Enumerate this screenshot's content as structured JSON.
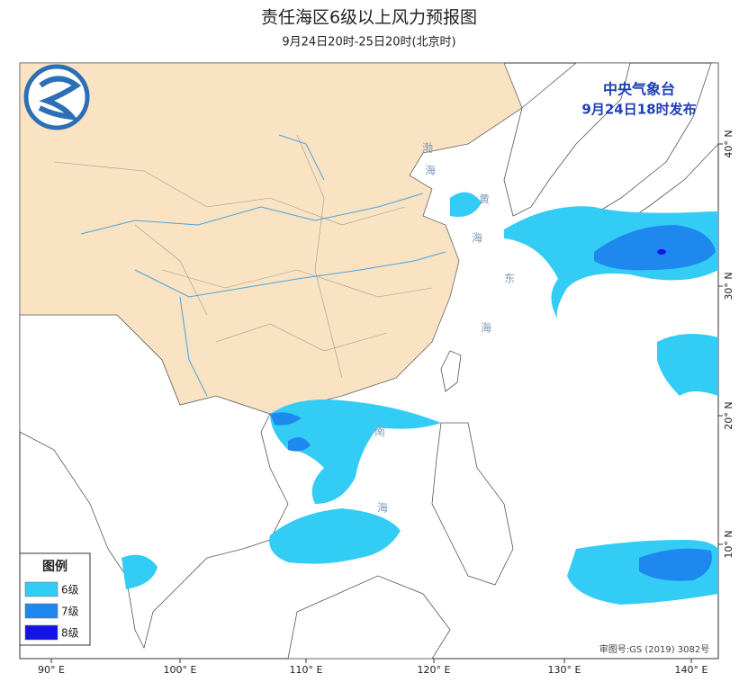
{
  "title": "责任海区6级以上风力预报图",
  "subtitle": "9月24日20时-25日20时(北京时)",
  "issuer": {
    "name": "中央气象台",
    "time": "9月24日18时发布"
  },
  "legend": {
    "title": "图例",
    "items": [
      {
        "label": "6级",
        "color": "#33ccf5"
      },
      {
        "label": "7级",
        "color": "#1e88ee"
      },
      {
        "label": "8级",
        "color": "#1414e6"
      }
    ]
  },
  "x_axis": {
    "labels": [
      "90° E",
      "100° E",
      "110° E",
      "120° E",
      "130° E",
      "140° E"
    ]
  },
  "y_axis": {
    "labels": [
      "10° N",
      "20° N",
      "30° N",
      "40° N"
    ]
  },
  "sea_labels": [
    "渤",
    "海",
    "黄",
    "海",
    "东",
    "海",
    "南",
    "海"
  ],
  "approval": "审图号:GS (2019) 3082号"
}
